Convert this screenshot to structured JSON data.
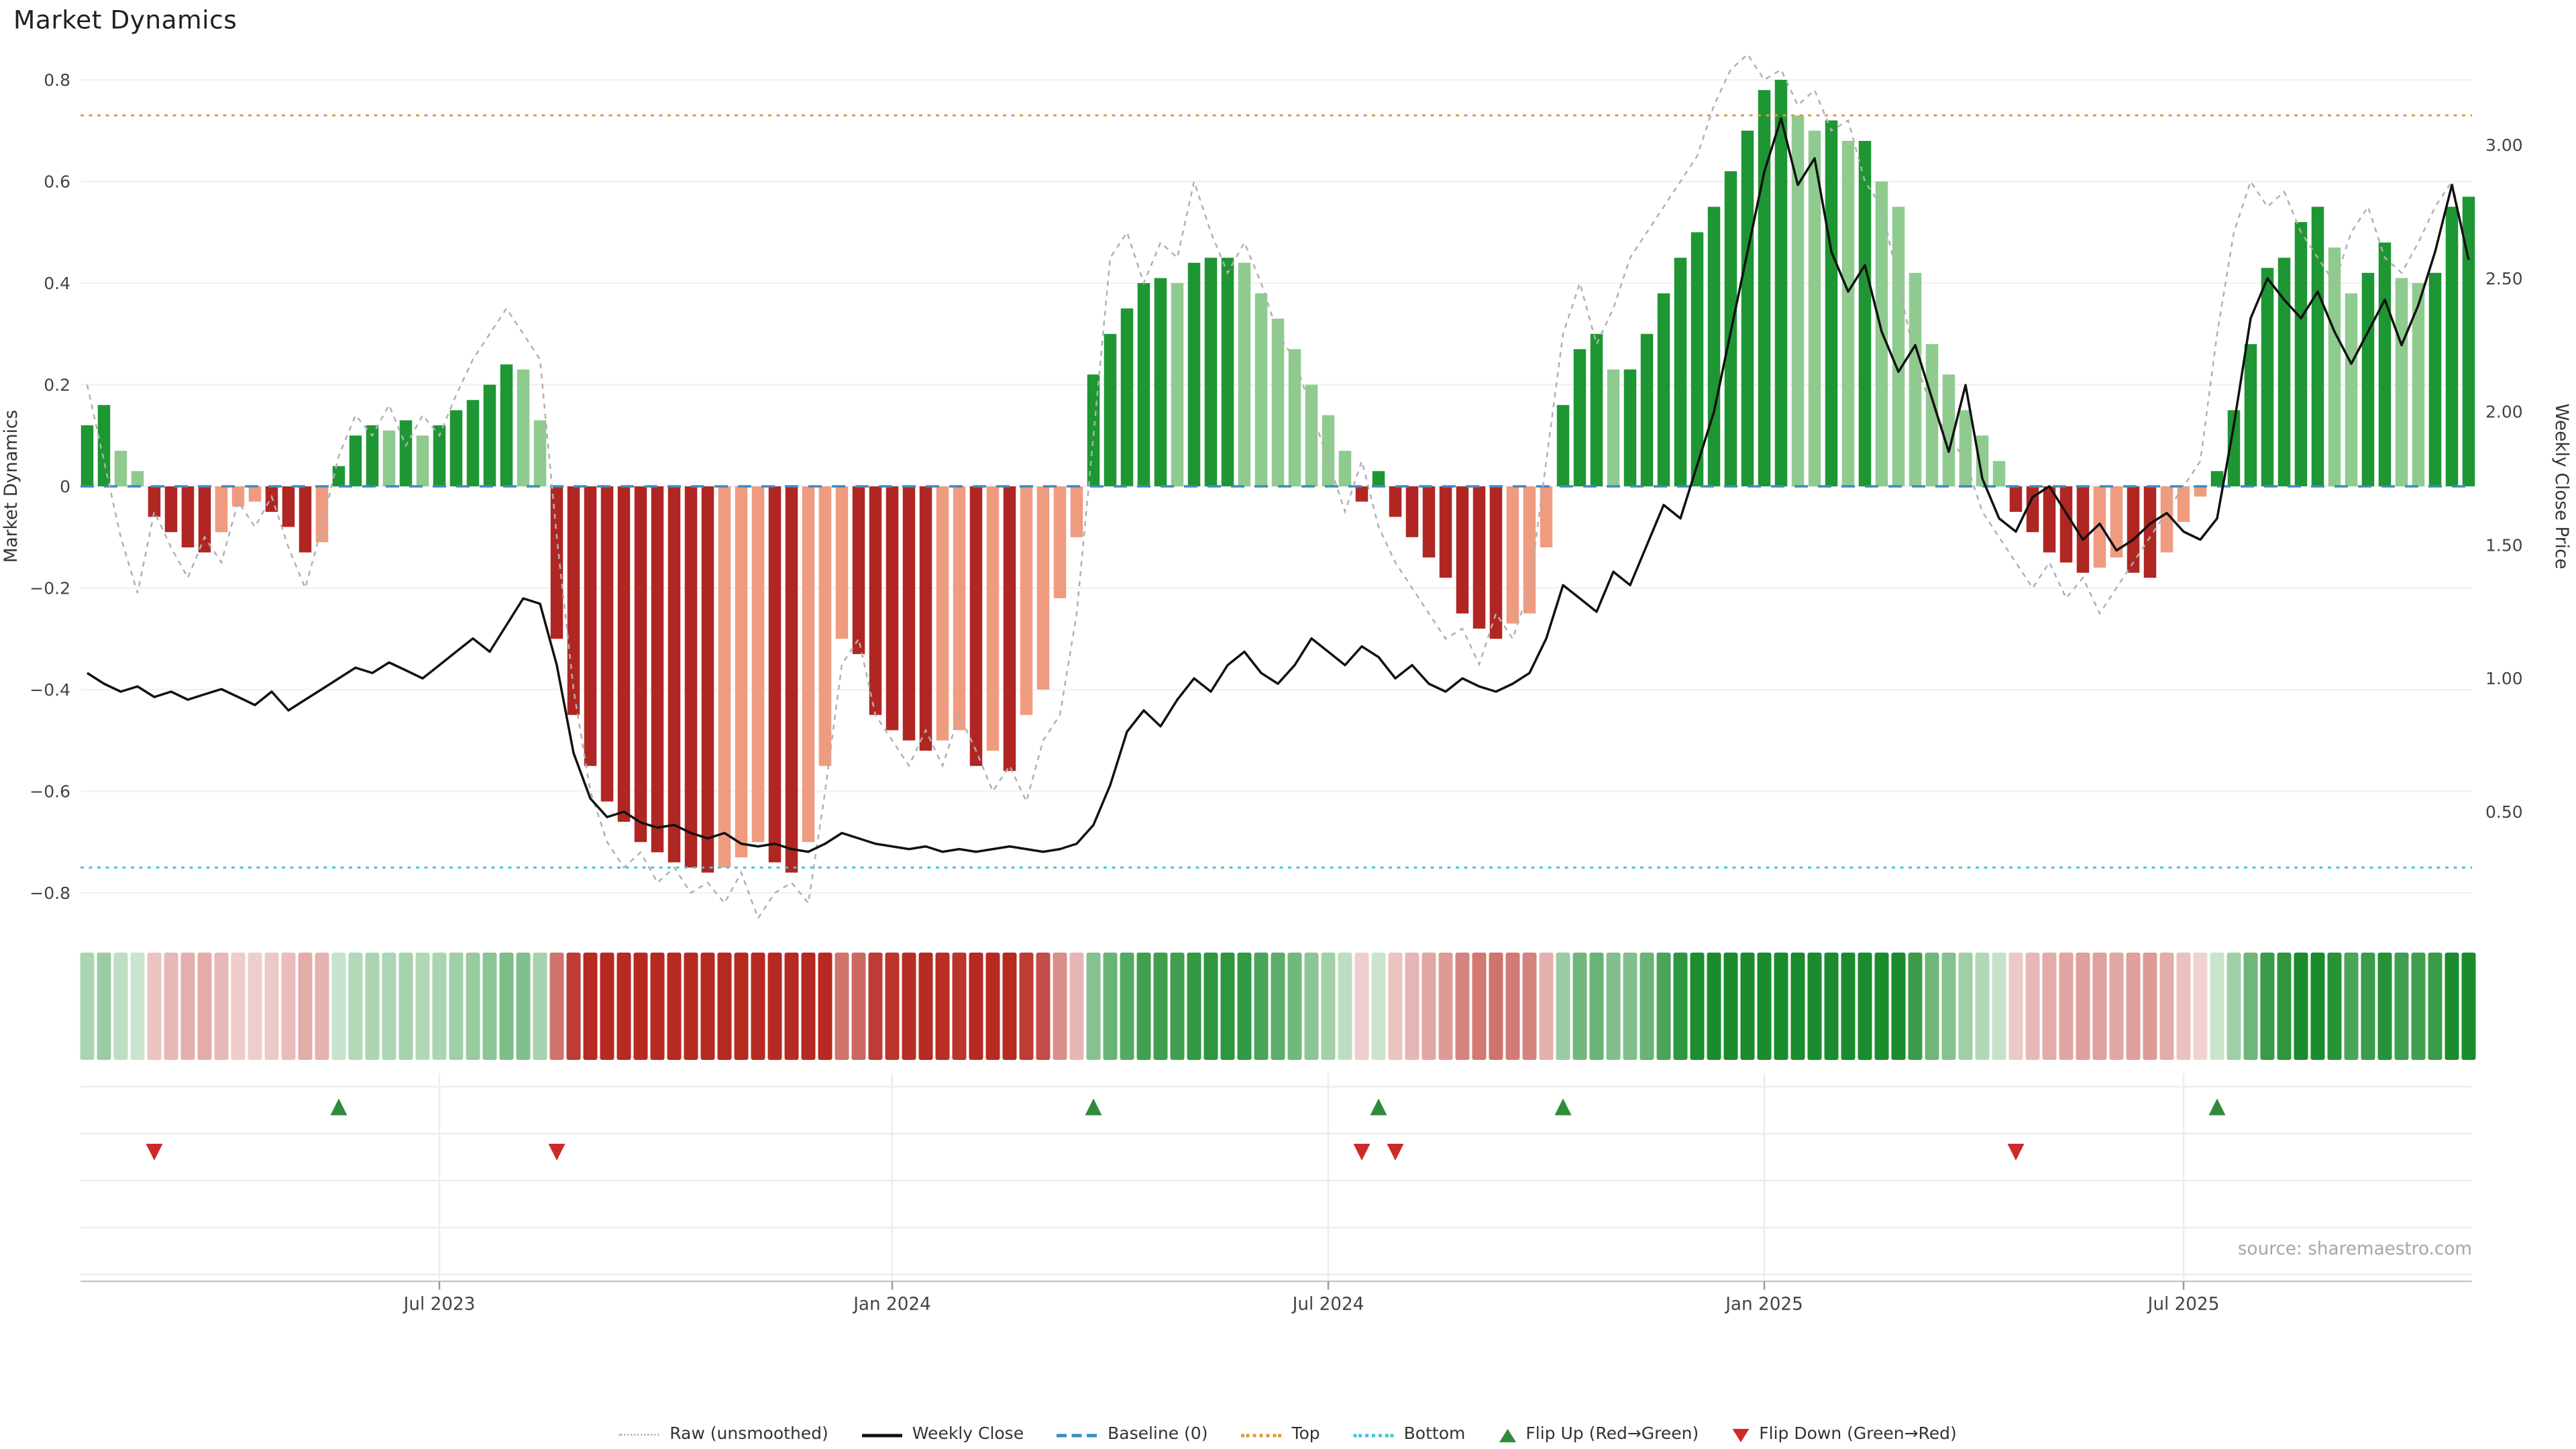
{
  "title": "Market Dynamics",
  "source_note": "source: sharemaestro.com",
  "axes": {
    "left_title": "Market Dynamics",
    "right_title": "Weekly Close Price",
    "left_ticks": [
      {
        "v": 0.8,
        "label": "0.8"
      },
      {
        "v": 0.6,
        "label": "0.6"
      },
      {
        "v": 0.4,
        "label": "0.4"
      },
      {
        "v": 0.2,
        "label": "0.2"
      },
      {
        "v": 0.0,
        "label": "0"
      },
      {
        "v": -0.2,
        "label": "−0.2"
      },
      {
        "v": -0.4,
        "label": "−0.4"
      },
      {
        "v": -0.6,
        "label": "−0.6"
      },
      {
        "v": -0.8,
        "label": "−0.8"
      }
    ],
    "right_ticks": [
      {
        "v": 3.0,
        "label": "3.00"
      },
      {
        "v": 2.5,
        "label": "2.50"
      },
      {
        "v": 2.0,
        "label": "2.00"
      },
      {
        "v": 1.5,
        "label": "1.50"
      },
      {
        "v": 1.0,
        "label": "1.00"
      },
      {
        "v": 0.5,
        "label": "0.50"
      }
    ],
    "x_ticks": [
      {
        "week": 21,
        "label": "Jul 2023"
      },
      {
        "week": 48,
        "label": "Jan 2024"
      },
      {
        "week": 74,
        "label": "Jul 2024"
      },
      {
        "week": 100,
        "label": "Jan 2025"
      },
      {
        "week": 125,
        "label": "Jul 2025"
      }
    ]
  },
  "chart_data": {
    "type": "bar+line",
    "title": "Market Dynamics",
    "x_unit": "week",
    "start_date": "2023-02-13",
    "freq": "weekly",
    "n_points": 143,
    "ylim_left": [
      -0.85,
      0.85
    ],
    "ylim_right": [
      0.3,
      3.25
    ],
    "baseline": 0,
    "top_threshold": 0.73,
    "bottom_threshold": -0.75,
    "grid": true,
    "legend_position": "bottom-center",
    "series": [
      {
        "name": "Market Dynamics (smoothed bars)",
        "type": "bar",
        "axis": "left",
        "values": [
          0.12,
          0.16,
          0.07,
          0.03,
          -0.06,
          -0.09,
          -0.12,
          -0.13,
          -0.09,
          -0.04,
          -0.03,
          -0.05,
          -0.08,
          -0.13,
          -0.11,
          0.04,
          0.1,
          0.12,
          0.11,
          0.13,
          0.1,
          0.12,
          0.15,
          0.17,
          0.2,
          0.24,
          0.23,
          0.13,
          -0.3,
          -0.45,
          -0.55,
          -0.62,
          -0.66,
          -0.7,
          -0.72,
          -0.74,
          -0.75,
          -0.76,
          -0.75,
          -0.73,
          -0.7,
          -0.74,
          -0.76,
          -0.7,
          -0.55,
          -0.3,
          -0.33,
          -0.45,
          -0.48,
          -0.5,
          -0.52,
          -0.5,
          -0.48,
          -0.55,
          -0.52,
          -0.56,
          -0.45,
          -0.4,
          -0.22,
          -0.1,
          0.22,
          0.3,
          0.35,
          0.4,
          0.41,
          0.4,
          0.44,
          0.45,
          0.45,
          0.44,
          0.38,
          0.33,
          0.27,
          0.2,
          0.14,
          0.07,
          -0.03,
          0.03,
          -0.06,
          -0.1,
          -0.14,
          -0.18,
          -0.25,
          -0.28,
          -0.3,
          -0.27,
          -0.25,
          -0.12,
          0.16,
          0.27,
          0.3,
          0.23,
          0.23,
          0.3,
          0.38,
          0.45,
          0.5,
          0.55,
          0.62,
          0.7,
          0.78,
          0.8,
          0.73,
          0.7,
          0.72,
          0.68,
          0.68,
          0.6,
          0.55,
          0.42,
          0.28,
          0.22,
          0.15,
          0.1,
          0.05,
          -0.05,
          -0.09,
          -0.13,
          -0.15,
          -0.17,
          -0.16,
          -0.14,
          -0.17,
          -0.18,
          -0.13,
          -0.07,
          -0.02,
          0.03,
          0.15,
          0.28,
          0.43,
          0.45,
          0.52,
          0.55,
          0.47,
          0.38,
          0.42,
          0.48,
          0.41,
          0.4,
          0.42,
          0.55,
          0.57
        ]
      },
      {
        "name": "Raw (unsmoothed)",
        "type": "line",
        "axis": "left",
        "values": [
          0.2,
          0.05,
          -0.1,
          -0.21,
          -0.05,
          -0.12,
          -0.18,
          -0.1,
          -0.15,
          -0.03,
          -0.08,
          -0.02,
          -0.12,
          -0.2,
          -0.08,
          0.06,
          0.14,
          0.1,
          0.16,
          0.08,
          0.14,
          0.1,
          0.18,
          0.25,
          0.3,
          0.35,
          0.3,
          0.25,
          -0.1,
          -0.4,
          -0.6,
          -0.7,
          -0.75,
          -0.72,
          -0.78,
          -0.75,
          -0.8,
          -0.78,
          -0.82,
          -0.76,
          -0.85,
          -0.8,
          -0.78,
          -0.82,
          -0.6,
          -0.35,
          -0.3,
          -0.45,
          -0.5,
          -0.55,
          -0.48,
          -0.55,
          -0.45,
          -0.52,
          -0.6,
          -0.55,
          -0.62,
          -0.5,
          -0.45,
          -0.25,
          0.1,
          0.45,
          0.5,
          0.4,
          0.48,
          0.45,
          0.6,
          0.5,
          0.42,
          0.48,
          0.4,
          0.3,
          0.25,
          0.15,
          0.05,
          -0.05,
          0.05,
          -0.08,
          -0.15,
          -0.2,
          -0.25,
          -0.3,
          -0.28,
          -0.35,
          -0.25,
          -0.3,
          -0.2,
          0.05,
          0.3,
          0.4,
          0.28,
          0.35,
          0.45,
          0.5,
          0.55,
          0.6,
          0.65,
          0.75,
          0.82,
          0.85,
          0.8,
          0.82,
          0.75,
          0.78,
          0.7,
          0.72,
          0.6,
          0.55,
          0.4,
          0.25,
          0.15,
          0.1,
          0.05,
          -0.05,
          -0.1,
          -0.15,
          -0.2,
          -0.15,
          -0.22,
          -0.18,
          -0.25,
          -0.2,
          -0.15,
          -0.1,
          -0.05,
          0.0,
          0.05,
          0.3,
          0.5,
          0.6,
          0.55,
          0.58,
          0.5,
          0.45,
          0.4,
          0.5,
          0.55,
          0.45,
          0.42,
          0.48,
          0.55,
          0.6,
          0.45
        ]
      },
      {
        "name": "Weekly Close",
        "type": "line",
        "axis": "right",
        "values": [
          1.02,
          0.98,
          0.95,
          0.97,
          0.93,
          0.95,
          0.92,
          0.94,
          0.96,
          0.93,
          0.9,
          0.95,
          0.88,
          0.92,
          0.96,
          1.0,
          1.04,
          1.02,
          1.06,
          1.03,
          1.0,
          1.05,
          1.1,
          1.15,
          1.1,
          1.2,
          1.3,
          1.28,
          1.05,
          0.72,
          0.55,
          0.48,
          0.5,
          0.46,
          0.44,
          0.45,
          0.42,
          0.4,
          0.42,
          0.38,
          0.37,
          0.38,
          0.36,
          0.35,
          0.38,
          0.42,
          0.4,
          0.38,
          0.37,
          0.36,
          0.37,
          0.35,
          0.36,
          0.35,
          0.36,
          0.37,
          0.36,
          0.35,
          0.36,
          0.38,
          0.45,
          0.6,
          0.8,
          0.88,
          0.82,
          0.92,
          1.0,
          0.95,
          1.05,
          1.1,
          1.02,
          0.98,
          1.05,
          1.15,
          1.1,
          1.05,
          1.12,
          1.08,
          1.0,
          1.05,
          0.98,
          0.95,
          1.0,
          0.97,
          0.95,
          0.98,
          1.02,
          1.15,
          1.35,
          1.3,
          1.25,
          1.4,
          1.35,
          1.5,
          1.65,
          1.6,
          1.8,
          2.0,
          2.3,
          2.6,
          2.9,
          3.1,
          2.85,
          2.95,
          2.6,
          2.45,
          2.55,
          2.3,
          2.15,
          2.25,
          2.05,
          1.85,
          2.1,
          1.75,
          1.6,
          1.55,
          1.68,
          1.72,
          1.62,
          1.52,
          1.58,
          1.48,
          1.52,
          1.58,
          1.62,
          1.55,
          1.52,
          1.6,
          1.95,
          2.35,
          2.5,
          2.42,
          2.35,
          2.45,
          2.3,
          2.18,
          2.3,
          2.42,
          2.25,
          2.4,
          2.6,
          2.85,
          2.57
        ]
      }
    ],
    "flip_up_weeks": [
      15,
      60,
      77,
      88,
      127
    ],
    "flip_down_weeks": [
      4,
      28,
      76,
      78,
      115
    ],
    "heatmap": "strip of per-week cells colored by bar sign and magnitude"
  },
  "legend": {
    "items": [
      {
        "label": "Raw (unsmoothed)",
        "type": "raw"
      },
      {
        "label": "Weekly Close",
        "type": "close"
      },
      {
        "label": "Baseline (0)",
        "type": "baseline"
      },
      {
        "label": "Top",
        "type": "top"
      },
      {
        "label": "Bottom",
        "type": "bottom"
      },
      {
        "label": "Flip Up (Red→Green)",
        "type": "flip-up"
      },
      {
        "label": "Flip Down (Green→Red)",
        "type": "flip-down"
      }
    ]
  },
  "colors": {
    "bar_green_dark": "#1e9633",
    "bar_green_light": "#8fcb8f",
    "bar_red_dark": "#b02622",
    "bar_red_light": "#ef9b80",
    "raw_line": "#b0b0b0",
    "close_line": "#111111",
    "baseline": "#3b8bc4",
    "top": "#e0993f",
    "bottom": "#45c5d6",
    "flip_up": "#2e8b3a",
    "flip_down": "#cc2b2b",
    "heat_green_rgb": "26,140,45",
    "heat_red_rgb": "183,42,34",
    "grid": "#f2f2f2",
    "axis_text": "#444444",
    "source_text": "#a6a6a6"
  }
}
